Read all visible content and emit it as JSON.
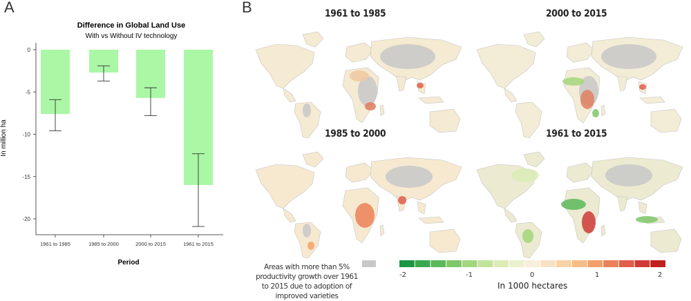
{
  "panel_a": {
    "letter": "A"
  },
  "panel_b": {
    "letter": "B"
  },
  "chart_data": {
    "type": "bar",
    "title": "Difference in Global Land Use",
    "subtitle": "With vs Without IV technology",
    "xlabel": "Period",
    "ylabel": "In million ha",
    "categories": [
      "1961 to 1985",
      "1985 to 2000",
      "2000 to 2015",
      "1961 to 2015"
    ],
    "values": [
      -7.6,
      -2.7,
      -5.7,
      -16.0
    ],
    "error_low": [
      -9.6,
      -3.7,
      -7.8,
      -20.9
    ],
    "error_high": [
      -5.9,
      -1.9,
      -4.5,
      -12.3
    ],
    "ylim": [
      -22,
      1
    ],
    "yticks": [
      0,
      -5,
      -10,
      -15,
      -20
    ],
    "bar_color": "#aaf7a6",
    "grid": false
  },
  "maps": [
    {
      "title": "1961 to 1985",
      "tone": "mixed-red"
    },
    {
      "title": "2000 to 2015",
      "tone": "mixed-green"
    },
    {
      "title": "1985 to 2000",
      "tone": "red"
    },
    {
      "title": "1961 to 2015",
      "tone": "green"
    }
  ],
  "legend": {
    "note": "Areas with more than 5% productivity growth over 1961 to 2015 due to adoption of improved varieties",
    "gray_color": "#c8c8c8",
    "title": "In 1000 hectares",
    "ticks": [
      "-2",
      "-1",
      "0",
      "1",
      "2"
    ],
    "colors": [
      "#1a9641",
      "#3aa84f",
      "#5cb85c",
      "#7fc76a",
      "#a3d67d",
      "#c2e39a",
      "#dbecb6",
      "#ebf0cf",
      "#f7efd9",
      "#f8e2c4",
      "#f9d2a6",
      "#f8bd86",
      "#f4a06a",
      "#ec8058",
      "#e05e49",
      "#cf3a37",
      "#c0201f"
    ]
  }
}
